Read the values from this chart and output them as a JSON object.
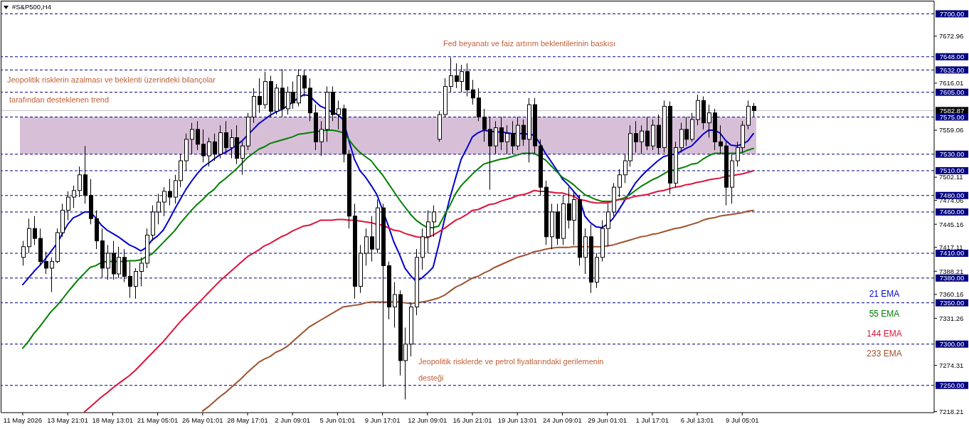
{
  "chart_data": {
    "type": "candlestick",
    "title": "#S&P500,H4",
    "color": "#000000",
    "categories": [
      "11 May 2026",
      null,
      null,
      null,
      null,
      null,
      null,
      null,
      "13 May 21:01",
      null,
      null,
      null,
      null,
      null,
      null,
      null,
      "18 May 13:01",
      null,
      null,
      null,
      null,
      null,
      null,
      null,
      "21 May 05:01",
      null,
      null,
      null,
      null,
      null,
      null,
      null,
      "26 May 01:01",
      null,
      null,
      null,
      null,
      null,
      null,
      null,
      "28 May 17:01",
      null,
      null,
      null,
      null,
      null,
      null,
      null,
      "2 Jun 09:01",
      null,
      null,
      null,
      null,
      null,
      null,
      null,
      "5 Jun 01:01",
      null,
      null,
      null,
      null,
      null,
      null,
      null,
      "9 Jun 17:01",
      null,
      null,
      null,
      null,
      null,
      null,
      null,
      "12 Jun 09:01",
      null,
      null,
      null,
      null,
      null,
      null,
      null,
      "16 Jun 21:01",
      null,
      null,
      null,
      null,
      null,
      null,
      null,
      "19 Jun 13:01",
      null,
      null,
      null,
      null,
      null,
      null,
      null,
      "24 Jun 09:01",
      null,
      null,
      null,
      null,
      null,
      null,
      null,
      "29 Jun 01:01",
      null,
      null,
      null,
      null,
      null,
      null,
      null,
      "1 Jul 17:01",
      null,
      null,
      null,
      null,
      null,
      null,
      null,
      "6 Jul 13:01",
      null,
      null,
      null,
      null,
      null,
      null,
      null,
      "9 Jul 05:01",
      null,
      null
    ],
    "ohlc": [
      [
        7405,
        7425,
        7395,
        7418
      ],
      [
        7418,
        7452,
        7410,
        7440
      ],
      [
        7440,
        7455,
        7420,
        7428
      ],
      [
        7428,
        7440,
        7395,
        7400
      ],
      [
        7400,
        7412,
        7385,
        7392
      ],
      [
        7392,
        7405,
        7363,
        7400
      ],
      [
        7400,
        7440,
        7398,
        7435
      ],
      [
        7435,
        7470,
        7430,
        7462
      ],
      [
        7462,
        7485,
        7450,
        7478
      ],
      [
        7478,
        7492,
        7465,
        7486
      ],
      [
        7486,
        7515,
        7478,
        7505
      ],
      [
        7505,
        7540,
        7470,
        7480
      ],
      [
        7480,
        7500,
        7445,
        7452
      ],
      [
        7452,
        7462,
        7415,
        7425
      ],
      [
        7425,
        7440,
        7380,
        7392
      ],
      [
        7392,
        7420,
        7378,
        7410
      ],
      [
        7410,
        7425,
        7378,
        7385
      ],
      [
        7385,
        7418,
        7380,
        7405
      ],
      [
        7405,
        7415,
        7375,
        7382
      ],
      [
        7382,
        7400,
        7356,
        7370
      ],
      [
        7370,
        7392,
        7355,
        7388
      ],
      [
        7388,
        7405,
        7370,
        7398
      ],
      [
        7398,
        7440,
        7392,
        7432
      ],
      [
        7432,
        7468,
        7425,
        7460
      ],
      [
        7460,
        7482,
        7445,
        7472
      ],
      [
        7472,
        7490,
        7455,
        7485
      ],
      [
        7485,
        7500,
        7468,
        7478
      ],
      [
        7478,
        7505,
        7470,
        7498
      ],
      [
        7498,
        7530,
        7490,
        7522
      ],
      [
        7522,
        7555,
        7510,
        7548
      ],
      [
        7548,
        7568,
        7530,
        7560
      ],
      [
        7560,
        7570,
        7535,
        7542
      ],
      [
        7542,
        7560,
        7520,
        7528
      ],
      [
        7528,
        7550,
        7515,
        7545
      ],
      [
        7545,
        7555,
        7522,
        7530
      ],
      [
        7530,
        7565,
        7525,
        7556
      ],
      [
        7556,
        7570,
        7530,
        7538
      ],
      [
        7538,
        7560,
        7525,
        7550
      ],
      [
        7550,
        7565,
        7518,
        7525
      ],
      [
        7525,
        7545,
        7505,
        7540
      ],
      [
        7540,
        7580,
        7535,
        7575
      ],
      [
        7575,
        7610,
        7568,
        7600
      ],
      [
        7600,
        7622,
        7580,
        7590
      ],
      [
        7590,
        7630,
        7585,
        7618
      ],
      [
        7618,
        7625,
        7575,
        7582
      ],
      [
        7582,
        7615,
        7578,
        7610
      ],
      [
        7610,
        7633,
        7575,
        7585
      ],
      [
        7585,
        7612,
        7578,
        7605
      ],
      [
        7605,
        7618,
        7585,
        7592
      ],
      [
        7592,
        7633,
        7588,
        7625
      ],
      [
        7625,
        7632,
        7600,
        7610
      ],
      [
        7610,
        7622,
        7570,
        7580
      ],
      [
        7580,
        7590,
        7535,
        7545
      ],
      [
        7545,
        7570,
        7528,
        7560
      ],
      [
        7560,
        7612,
        7545,
        7605
      ],
      [
        7605,
        7612,
        7570,
        7578
      ],
      [
        7578,
        7595,
        7560,
        7585
      ],
      [
        7585,
        7590,
        7520,
        7530
      ],
      [
        7530,
        7535,
        7440,
        7455
      ],
      [
        7455,
        7470,
        7355,
        7370
      ],
      [
        7370,
        7420,
        7362,
        7410
      ],
      [
        7410,
        7440,
        7395,
        7430
      ],
      [
        7430,
        7455,
        7400,
        7415
      ],
      [
        7415,
        7475,
        7410,
        7465
      ],
      [
        7465,
        7470,
        7248,
        7395
      ],
      [
        7395,
        7400,
        7330,
        7345
      ],
      [
        7345,
        7375,
        7320,
        7360
      ],
      [
        7360,
        7365,
        7262,
        7280
      ],
      [
        7280,
        7320,
        7233,
        7300
      ],
      [
        7300,
        7350,
        7285,
        7345
      ],
      [
        7345,
        7415,
        7335,
        7405
      ],
      [
        7405,
        7440,
        7390,
        7430
      ],
      [
        7430,
        7462,
        7410,
        7448
      ],
      [
        7448,
        7468,
        7430,
        7460
      ],
      [
        7548,
        7582,
        7545,
        7578
      ],
      [
        7578,
        7622,
        7575,
        7612
      ],
      [
        7612,
        7647,
        7605,
        7625
      ],
      [
        7625,
        7640,
        7610,
        7618
      ],
      [
        7618,
        7638,
        7605,
        7630
      ],
      [
        7630,
        7640,
        7600,
        7608
      ],
      [
        7608,
        7620,
        7590,
        7598
      ],
      [
        7598,
        7610,
        7570,
        7575
      ],
      [
        7575,
        7585,
        7545,
        7560
      ],
      [
        7560,
        7575,
        7487,
        7540
      ],
      [
        7540,
        7570,
        7530,
        7562
      ],
      [
        7562,
        7575,
        7535,
        7545
      ],
      [
        7545,
        7565,
        7530,
        7555
      ],
      [
        7555,
        7570,
        7530,
        7540
      ],
      [
        7540,
        7575,
        7535,
        7565
      ],
      [
        7565,
        7572,
        7540,
        7548
      ],
      [
        7548,
        7598,
        7520,
        7590
      ],
      [
        7590,
        7598,
        7530,
        7540
      ],
      [
        7540,
        7548,
        7480,
        7490
      ],
      [
        7490,
        7498,
        7420,
        7430
      ],
      [
        7430,
        7470,
        7415,
        7460
      ],
      [
        7460,
        7470,
        7420,
        7428
      ],
      [
        7428,
        7480,
        7420,
        7470
      ],
      [
        7470,
        7490,
        7440,
        7450
      ],
      [
        7450,
        7485,
        7420,
        7475
      ],
      [
        7475,
        7480,
        7395,
        7405
      ],
      [
        7405,
        7440,
        7385,
        7430
      ],
      [
        7430,
        7445,
        7362,
        7375
      ],
      [
        7375,
        7410,
        7368,
        7405
      ],
      [
        7405,
        7450,
        7400,
        7440
      ],
      [
        7440,
        7470,
        7418,
        7460
      ],
      [
        7460,
        7495,
        7455,
        7490
      ],
      [
        7490,
        7512,
        7478,
        7505
      ],
      [
        7505,
        7530,
        7495,
        7522
      ],
      [
        7522,
        7565,
        7515,
        7555
      ],
      [
        7555,
        7570,
        7532,
        7545
      ],
      [
        7545,
        7565,
        7530,
        7558
      ],
      [
        7558,
        7575,
        7535,
        7540
      ],
      [
        7540,
        7572,
        7535,
        7565
      ],
      [
        7565,
        7578,
        7530,
        7538
      ],
      [
        7538,
        7595,
        7532,
        7588
      ],
      [
        7588,
        7594,
        7482,
        7495
      ],
      [
        7495,
        7545,
        7490,
        7538
      ],
      [
        7538,
        7568,
        7532,
        7560
      ],
      [
        7560,
        7575,
        7540,
        7548
      ],
      [
        7548,
        7580,
        7545,
        7572
      ],
      [
        7572,
        7602,
        7565,
        7595
      ],
      [
        7595,
        7600,
        7560,
        7568
      ],
      [
        7568,
        7590,
        7550,
        7580
      ],
      [
        7580,
        7585,
        7535,
        7545
      ],
      [
        7545,
        7565,
        7530,
        7540
      ],
      [
        7540,
        7545,
        7468,
        7490
      ],
      [
        7490,
        7530,
        7470,
        7522
      ],
      [
        7522,
        7545,
        7515,
        7538
      ],
      [
        7538,
        7570,
        7532,
        7565
      ],
      [
        7565,
        7595,
        7560,
        7588
      ],
      [
        7588,
        7592,
        7575,
        7582.87
      ]
    ],
    "series": [
      {
        "name": "21 EMA",
        "type": "line",
        "color": "#0000cd",
        "values": [
          7372,
          7380,
          7388,
          7395,
          7403,
          7412,
          7421,
          7433,
          7445,
          7453,
          7456,
          7460,
          7460,
          7453,
          7444,
          7438,
          7434,
          7430,
          7425,
          7420,
          7417,
          7413,
          7417,
          7426,
          7431,
          7438,
          7450,
          7463,
          7475,
          7487,
          7497,
          7506,
          7514,
          7519,
          7524,
          7529,
          7532,
          7536,
          7541,
          7546,
          7553,
          7560,
          7567,
          7572,
          7577,
          7581,
          7584,
          7588,
          7593,
          7598,
          7602,
          7601,
          7594,
          7588,
          7585,
          7581,
          7578,
          7572,
          7547,
          7524,
          7510,
          7502,
          7492,
          7481,
          7463,
          7444,
          7424,
          7409,
          7392,
          7383,
          7376,
          7380,
          7386,
          7393,
          7420,
          7450,
          7477,
          7501,
          7524,
          7537,
          7551,
          7556,
          7559,
          7558,
          7557,
          7557,
          7556,
          7555,
          7555,
          7555,
          7554,
          7553,
          7543,
          7531,
          7521,
          7511,
          7500,
          7493,
          7485,
          7477,
          7455,
          7447,
          7442,
          7441,
          7445,
          7452,
          7462,
          7473,
          7484,
          7495,
          7503,
          7510,
          7516,
          7522,
          7527,
          7529,
          7530,
          7533,
          7537,
          7540,
          7547,
          7554,
          7559,
          7559,
          7556,
          7547,
          7541,
          7540,
          7542,
          7546,
          7555
        ]
      },
      {
        "name": "55 EMA",
        "type": "line",
        "color": "#008000",
        "values": [
          7295,
          7303,
          7313,
          7321,
          7330,
          7339,
          7346,
          7354,
          7363,
          7371,
          7379,
          7386,
          7393,
          7395,
          7399,
          7400,
          7400,
          7400,
          7400,
          7401,
          7401,
          7402,
          7406,
          7409,
          7416,
          7423,
          7430,
          7437,
          7446,
          7454,
          7462,
          7469,
          7475,
          7482,
          7487,
          7495,
          7500,
          7506,
          7512,
          7519,
          7526,
          7531,
          7536,
          7539,
          7543,
          7545,
          7547,
          7549,
          7551,
          7554,
          7555,
          7556,
          7557,
          7558,
          7559,
          7559,
          7558,
          7556,
          7548,
          7539,
          7532,
          7527,
          7522,
          7513,
          7505,
          7495,
          7485,
          7475,
          7466,
          7457,
          7450,
          7445,
          7441,
          7441,
          7443,
          7456,
          7468,
          7482,
          7492,
          7499,
          7506,
          7512,
          7518,
          7520,
          7522,
          7524,
          7525,
          7527,
          7529,
          7531,
          7531,
          7531,
          7527,
          7523,
          7516,
          7509,
          7502,
          7498,
          7493,
          7487,
          7481,
          7478,
          7475,
          7473,
          7473,
          7473,
          7475,
          7477,
          7481,
          7486,
          7491,
          7495,
          7499,
          7502,
          7506,
          7510,
          7511,
          7513,
          7515,
          7518,
          7519,
          7524,
          7528,
          7531,
          7531,
          7531,
          7531,
          7531,
          7532,
          7535,
          7537
        ]
      },
      {
        "name": "144 EMA",
        "type": "line",
        "color": "#dc143c",
        "values": [
          null,
          null,
          null,
          null,
          null,
          null,
          null,
          null,
          null,
          null,
          null,
          7218,
          7224,
          7230,
          7236,
          7241,
          7247,
          7252,
          7257,
          7262,
          7268,
          7275,
          7282,
          7289,
          7296,
          7303,
          7311,
          7319,
          7327,
          7334,
          7341,
          7348,
          7355,
          7362,
          7369,
          7376,
          7382,
          7388,
          7394,
          7400,
          7406,
          7410,
          7414,
          7419,
          7422,
          7426,
          7430,
          7433,
          7437,
          7440,
          7443,
          7444,
          7447,
          7450,
          7450,
          7450,
          7451,
          7451,
          7450,
          7450,
          7449,
          7448,
          7447,
          7445,
          7444,
          7441,
          7438,
          7437,
          7434,
          7432,
          7430,
          7429,
          7429,
          7432,
          7436,
          7440,
          7445,
          7450,
          7453,
          7457,
          7462,
          7463,
          7466,
          7469,
          7470,
          7473,
          7475,
          7477,
          7480,
          7481,
          7483,
          7486,
          7485,
          7485,
          7484,
          7483,
          7483,
          7481,
          7479,
          7475,
          7474,
          7472,
          7471,
          7471,
          7471,
          7473,
          7475,
          7475,
          7477,
          7479,
          7480,
          7481,
          7483,
          7485,
          7486,
          7488,
          7490,
          7491,
          7493,
          7494,
          7496,
          7497,
          7499,
          7500,
          7501,
          7503,
          7504,
          7505,
          7506,
          7508,
          7510
        ]
      },
      {
        "name": "233 EMA",
        "type": "line",
        "color": "#a0522d",
        "values": [
          null,
          null,
          null,
          null,
          null,
          null,
          null,
          null,
          null,
          null,
          null,
          null,
          null,
          null,
          null,
          null,
          null,
          null,
          null,
          null,
          null,
          null,
          null,
          null,
          null,
          null,
          null,
          null,
          null,
          null,
          null,
          null,
          7219,
          7224,
          7230,
          7236,
          7241,
          7247,
          7253,
          7259,
          7266,
          7272,
          7278,
          7282,
          7285,
          7290,
          7293,
          7297,
          7303,
          7309,
          7315,
          7321,
          7325,
          7329,
          7333,
          7337,
          7341,
          7345,
          7346,
          7347,
          7348,
          7350,
          7351,
          7351,
          7351,
          7351,
          7351,
          7351,
          7350,
          7349,
          7350,
          7351,
          7352,
          7354,
          7356,
          7359,
          7364,
          7369,
          7372,
          7376,
          7380,
          7382,
          7386,
          7389,
          7393,
          7396,
          7399,
          7402,
          7405,
          7407,
          7409,
          7412,
          7413,
          7415,
          7416,
          7417,
          7417,
          7417,
          7418,
          7418,
          7418,
          7418,
          7418,
          7418,
          7419,
          7420,
          7422,
          7424,
          7426,
          7428,
          7430,
          7431,
          7433,
          7434,
          7436,
          7438,
          7440,
          7441,
          7443,
          7445,
          7447,
          7450,
          7452,
          7453,
          7455,
          7456,
          7457,
          7458,
          7459,
          7461,
          7462
        ]
      }
    ],
    "ylim": [
      7217,
      7715
    ],
    "yticks": [
      7218.21,
      7274.31,
      7331.26,
      7360.16,
      7388.21,
      7417.11,
      7445.16,
      7474.06,
      7502.11,
      7559.06,
      7616.01,
      7672.96
    ],
    "bands": [
      {
        "axis": "y",
        "from": 7530,
        "to": 7575,
        "color": "#d8bfd8"
      }
    ],
    "ref_lines": [
      {
        "axis": "y",
        "value": 7700,
        "label": "7700.00",
        "color": "#000080",
        "line_style": "dashed"
      },
      {
        "axis": "y",
        "value": 7648,
        "label": "7648.00",
        "color": "#000080",
        "line_style": "dashed"
      },
      {
        "axis": "y",
        "value": 7632,
        "label": "7632.00",
        "color": "#000080",
        "line_style": "dashed"
      },
      {
        "axis": "y",
        "value": 7605,
        "label": "7605.00",
        "color": "#000080",
        "line_style": "dashed"
      },
      {
        "axis": "y",
        "value": 7582.87,
        "label": "7582.87",
        "color": "#c0c0c0",
        "line_style": "solid"
      },
      {
        "axis": "y",
        "value": 7575,
        "label": "7575.00",
        "color": "#000080",
        "line_style": "dashed"
      },
      {
        "axis": "y",
        "value": 7530,
        "label": "7530.00",
        "color": "#000080",
        "line_style": "dashed"
      },
      {
        "axis": "y",
        "value": 7510,
        "label": "7510.00",
        "color": "#000080",
        "line_style": "dashed"
      },
      {
        "axis": "y",
        "value": 7480,
        "label": "7480.00",
        "color": "#000080",
        "line_style": "dashed"
      },
      {
        "axis": "y",
        "value": 7460,
        "label": "7460.00",
        "color": "#000080",
        "line_style": "dashed"
      },
      {
        "axis": "y",
        "value": 7410,
        "label": "7410.00",
        "color": "#000080",
        "line_style": "dashed"
      },
      {
        "axis": "y",
        "value": 7380,
        "label": "7380.00",
        "color": "#000080",
        "line_style": "dashed"
      },
      {
        "axis": "y",
        "value": 7350,
        "label": "7350.00",
        "color": "#000080",
        "line_style": "dashed"
      },
      {
        "axis": "y",
        "value": 7300,
        "label": "7300.00",
        "color": "#000080",
        "line_style": "dashed"
      },
      {
        "axis": "y",
        "value": 7250,
        "label": "7250.00",
        "color": "#000080",
        "line_style": "dashed"
      }
    ],
    "annotations": [
      "Fed beyanatı ve faiz artırım beklentilerinin baskısı",
      "Jeopolitik risklerin azalması ve beklenti üzerindeki bilançolar",
      "tarafından desteklenen trend",
      "Jeopolitik risklerde ve petrol fiyatlarındaki gerilemenin",
      "desteği"
    ],
    "legend": "right"
  }
}
